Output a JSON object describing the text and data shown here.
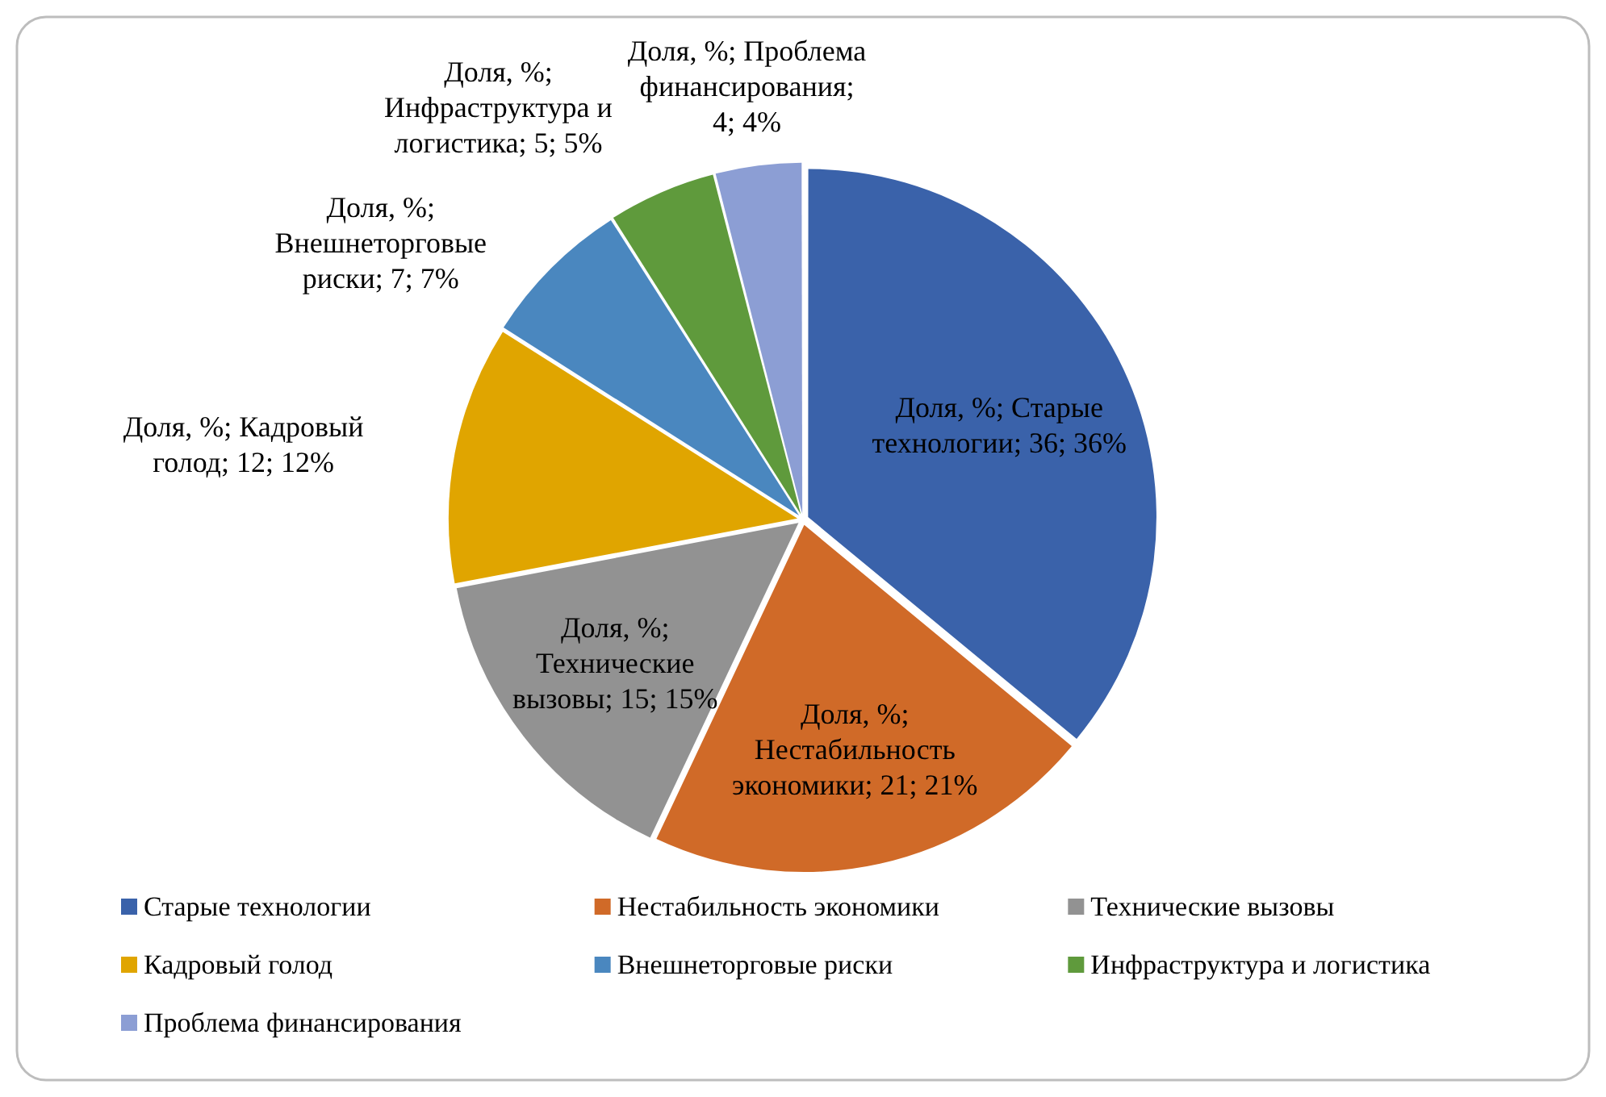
{
  "chart_data": {
    "type": "pie",
    "categories": [
      "Старые технологии",
      "Нестабильность экономики",
      "Технические вызовы",
      "Кадровый голод",
      "Внешнеторговые риски",
      "Инфраструктура и логистика",
      "Проблема финансирования"
    ],
    "values": [
      36,
      21,
      15,
      12,
      7,
      5,
      4
    ],
    "colors": [
      "#3a62aa",
      "#d06a28",
      "#929292",
      "#e0a500",
      "#4a87bf",
      "#5f9a3c",
      "#8c9ed4"
    ],
    "value_labels": [
      "Доля, %; Старые технологии; 36; 36%",
      "Доля, %; Нестабильность экономики; 21; 21%",
      "Доля, %; Технические вызовы; 15; 15%",
      "Доля, %; Кадровый голод; 12; 12%",
      "Доля, %; Внешнеторговые риски; 7; 7%",
      "Доля, %; Инфраструктура и логистика; 5; 5%",
      "Доля, %; Проблема финансирования; 4; 4%"
    ],
    "legend": "bottom"
  }
}
